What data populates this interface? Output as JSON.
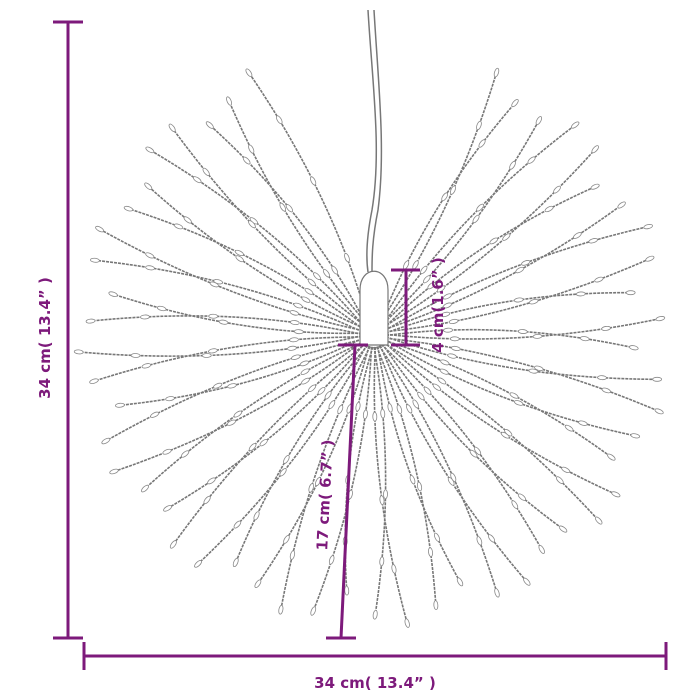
{
  "colors": {
    "dimension": "#7d1a7b",
    "strand": "#777777",
    "bead": "#ffffff"
  },
  "dimensions": {
    "height": "34 cm( 13.4” )",
    "width": "34 cm( 13.4” )",
    "cap_height": "4 cm(1.6” )",
    "strand_length": "17 cm( 6.7” )"
  }
}
